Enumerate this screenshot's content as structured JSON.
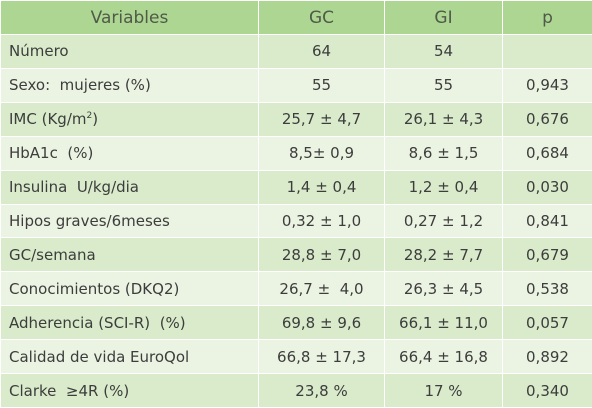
{
  "table": {
    "header": [
      "Variables",
      "GC",
      "GI",
      "p"
    ],
    "rows": [
      [
        "Número",
        "64",
        "54"
      ],
      [
        "Sexo:  mujeres (%)",
        "55",
        "55",
        "0,943"
      ],
      [
        [
          "IMC (Kg/m",
          {
            "sup": "2"
          },
          ")"
        ],
        "25,7 ± 4,7",
        "26,1 ± 4,3",
        "0,676"
      ],
      [
        "HbA1c  (%)",
        "8,5± 0,9",
        "8,6 ± 1,5",
        "0,684"
      ],
      [
        "Insulina  U/kg/dia",
        "1,4 ± 0,4",
        "1,2 ± 0,4",
        "0,030"
      ],
      [
        "Hipos graves/6meses",
        "0,32 ± 1,0",
        "0,27 ± 1,2",
        "0,841"
      ],
      [
        "GC/semana",
        "28,8 ± 7,0",
        "28,2 ± 7,7",
        "0,679"
      ],
      [
        "Conocimientos (DKQ2)",
        "26,7 ±  4,0",
        "26,3 ± 4,5",
        "0,538"
      ],
      [
        "Adherencia (SCI-R)  (%)",
        "69,8 ± 9,6",
        "66,1 ± 11,0",
        "0,057"
      ],
      [
        "Calidad de vida EuroQol",
        "66,8 ± 17,3",
        "66,4 ± 16,8",
        "0,892"
      ],
      [
        "Clarke  ≥4R (%)",
        "23,8 %",
        "17 %",
        "0,340"
      ]
    ]
  }
}
